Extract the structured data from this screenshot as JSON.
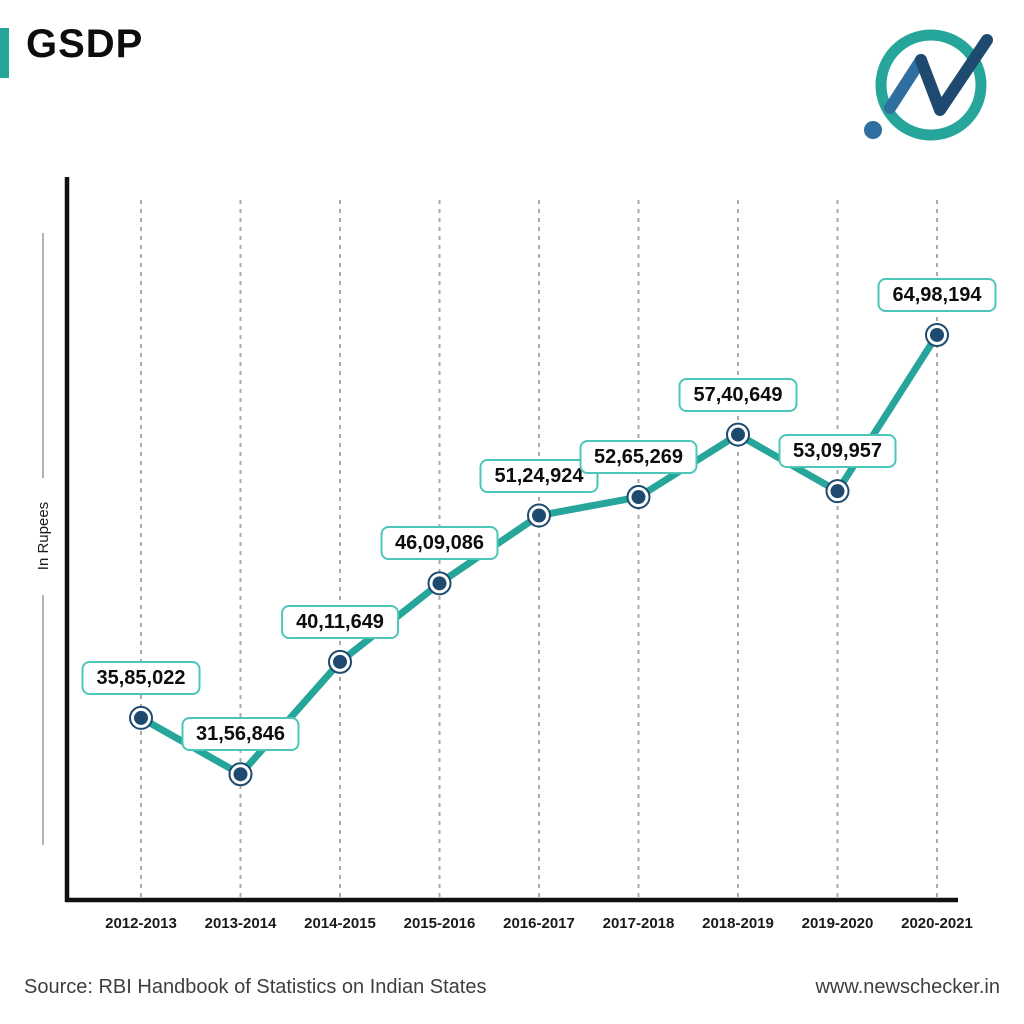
{
  "header": {
    "title": "GSDP",
    "accent_color": "#26A69A"
  },
  "logo": {
    "name": "newschecker-logo",
    "ring_color": "#26A69A",
    "check_dark_color": "#1D4A6E",
    "check_light_color": "#2F6F9F",
    "dot_color": "#2F6F9F"
  },
  "chart_data": {
    "type": "line",
    "title": "GSDP",
    "xlabel": "",
    "ylabel": "In Rupees",
    "categories": [
      "2012-2013",
      "2013-2014",
      "2014-2015",
      "2015-2016",
      "2016-2017",
      "2017-2018",
      "2018-2019",
      "2019-2020",
      "2020-2021"
    ],
    "values": [
      3585022,
      3156846,
      4011649,
      4609086,
      5124924,
      5265269,
      5740649,
      5309957,
      6498194
    ],
    "value_labels": [
      "35,85,022",
      "31,56,846",
      "40,11,649",
      "46,09,086",
      "51,24,924",
      "52,65,269",
      "57,40,649",
      "53,09,957",
      "64,98,194"
    ],
    "ylim_estimate": [
      2200000,
      7700000
    ],
    "grid": "vertical-dashed",
    "legend": "none",
    "line_color": "#26A69A",
    "marker_fill": "#1D4A6E",
    "label_box_border": "#4CC6B8",
    "gridline_color": "#ABABAB",
    "axis_color": "#111111"
  },
  "footer": {
    "source": "Source: RBI Handbook of Statistics on Indian States",
    "website": "www.newschecker.in"
  }
}
